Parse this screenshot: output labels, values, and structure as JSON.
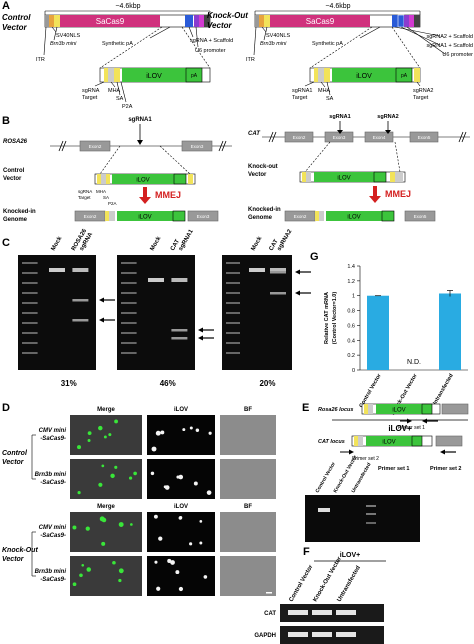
{
  "figure": {
    "a": {
      "label": "A",
      "control": {
        "title": [
          "Control",
          "Vector"
        ],
        "size": "~4.6kbp",
        "cas9": "SaCas9",
        "nls": "SV40NLS",
        "promoter": "Brn3b mini",
        "itr": "ITR",
        "spa": "Synthetic pA",
        "sgrna": "sgRNA + Scaffold",
        "u6": "U6 promoter",
        "ilov": "iLOV",
        "pa": "pA",
        "target": [
          "sgRNA",
          "Target"
        ],
        "mha": "MHA",
        "sa": "SA",
        "p2a": "P2A"
      },
      "knockout": {
        "title": [
          "Knock-Out",
          "Vector"
        ],
        "size": "~4.6kbp",
        "cas9": "SaCas9",
        "nls": "SV40NLS",
        "promoter": "Brn3b mini",
        "itr": "ITR",
        "spa": "Synthetic pA",
        "sgrna2": "sgRNA2 + Scaffold",
        "sgrna1": "sgRNA1 + Scaffold",
        "u6": "U6 promoter",
        "ilov": "iLOV",
        "pa": "pA",
        "target1": [
          "sgRNA1",
          "Target"
        ],
        "mha": "MHA",
        "sa": "SA",
        "target2": [
          "sgRNA2",
          "Target"
        ]
      }
    },
    "b": {
      "label": "B",
      "rosa": {
        "locus": "ROSA26",
        "exons": [
          "Exon2",
          "Exon3"
        ],
        "sgrna": "sgRNA1",
        "vector": [
          "Control",
          "Vector"
        ],
        "ilov": "iLOV",
        "target": [
          "sgRNA",
          "Target"
        ],
        "mha": "MHA",
        "sa": "SA",
        "p2a": "P2A",
        "mmej": "MMEJ",
        "genome": [
          "Knocked-in",
          "Genome"
        ],
        "ki_exons": [
          "Exon2",
          "Exon3"
        ],
        "ki_ilov": "iLOV"
      },
      "cat": {
        "locus": "CAT",
        "exons": [
          "Exon2",
          "Exon3",
          "Exon4",
          "Exon5"
        ],
        "sgrna1": "sgRNA1",
        "sgrna2": "sgRNA2",
        "vector": [
          "Knock-out",
          "Vector"
        ],
        "ilov": "iLOV",
        "mmej": "MMEJ",
        "genome": [
          "Knocked-in",
          "Genome"
        ],
        "ki_exons": [
          "Exon2",
          "Exon5"
        ],
        "ki_ilov": "iLOV"
      }
    },
    "c": {
      "label": "C",
      "gels": [
        {
          "mock": "Mock",
          "sample": [
            "ROSA26",
            "sgRNA"
          ],
          "percent": "31%"
        },
        {
          "mock": "Mock",
          "sample": [
            "CAT",
            "sgRNA1"
          ],
          "percent": "46%"
        },
        {
          "mock": "Mock",
          "sample": [
            "CAT",
            "sgRNA2"
          ],
          "percent": "20%"
        }
      ]
    },
    "d": {
      "label": "D",
      "groups": [
        {
          "columns": [
            "Merge",
            "iLOV",
            "BF"
          ],
          "name": [
            "Control",
            "Vector"
          ],
          "rows": [
            [
              "CMV mini",
              "-SaCas9-"
            ],
            [
              "Brn3b mini",
              "-SaCas9-"
            ]
          ]
        },
        {
          "columns": [
            "Merge",
            "iLOV",
            "BF"
          ],
          "name": [
            "Knock-Out",
            "Vector"
          ],
          "rows": [
            [
              "CMV mini",
              "-SaCas9-"
            ],
            [
              "Brn3b mini",
              "-SaCas9-"
            ]
          ]
        }
      ]
    },
    "e": {
      "label": "E",
      "rosa": "Rosa26 locus",
      "cat": "CAT locus",
      "ilov": [
        "iLOV",
        "iLOV"
      ],
      "primer1": "Primer set 1",
      "primer2": "Primer set 2",
      "gel_primers": [
        "Primer set 1",
        "Primer set 2"
      ],
      "lanes": [
        "Control Vector",
        "Knock-Out Vector",
        "Untransfected"
      ]
    },
    "f": {
      "label": "F",
      "group": "iLOV+",
      "lanes": [
        "Control Vector",
        "Knock-Out Vector",
        "Untransfected"
      ],
      "rows": [
        "CAT",
        "GAPDH"
      ]
    }
  },
  "chart_data": {
    "type": "bar",
    "panel": "G",
    "ylabel": [
      "Relative CAT mRNA",
      "(Control Vector=1.0)"
    ],
    "categories": [
      "Control Vector",
      "Knock-Out Vector",
      "Untransfected"
    ],
    "values": [
      1,
      null,
      1.03
    ],
    "errors": [
      0,
      null,
      0.04
    ],
    "annotation": "N.D.",
    "group": "iLOV+",
    "color": "#29abe2",
    "ylim": [
      0,
      1.4
    ],
    "yticks": [
      0,
      0.2,
      0.4,
      0.6,
      0.8,
      1,
      1.2,
      1.4
    ]
  }
}
